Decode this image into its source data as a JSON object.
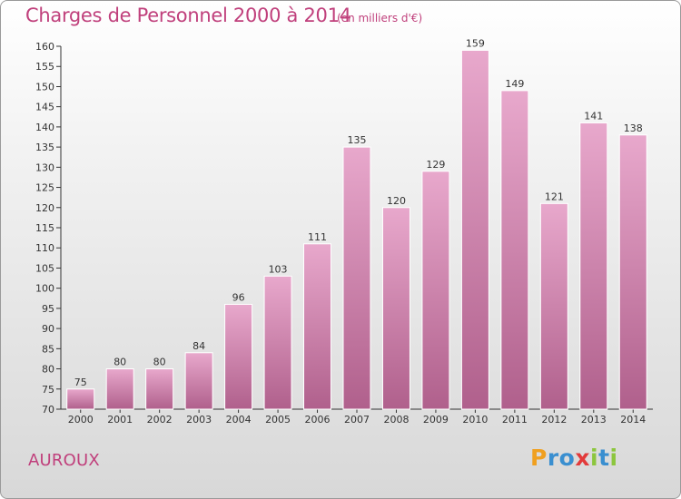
{
  "title": "Charges de Personnel 2000 à 2014",
  "subtitle": "(en milliers d'€)",
  "commune": "AUROUX",
  "logo": {
    "letters": [
      "P",
      "r",
      "o",
      "x",
      "i",
      "t",
      "i"
    ],
    "colors": [
      "#f0a020",
      "#3a8fd0",
      "#3a8fd0",
      "#e23a3a",
      "#8cc63e",
      "#3a8fd0",
      "#8cc63e"
    ]
  },
  "colors": {
    "accent": "#c0407c",
    "bar_top": "#e8a8cc",
    "bar_bottom": "#b0608c"
  },
  "chart_data": {
    "type": "bar",
    "categories": [
      "2000",
      "2001",
      "2002",
      "2003",
      "2004",
      "2005",
      "2006",
      "2007",
      "2008",
      "2009",
      "2010",
      "2011",
      "2012",
      "2013",
      "2014"
    ],
    "values": [
      75,
      80,
      80,
      84,
      96,
      103,
      111,
      135,
      120,
      129,
      159,
      149,
      121,
      141,
      138
    ],
    "ylim": [
      70,
      160
    ],
    "yticks": [
      70,
      75,
      80,
      85,
      90,
      95,
      100,
      105,
      110,
      115,
      120,
      125,
      130,
      135,
      140,
      145,
      150,
      155,
      160
    ],
    "grid": false,
    "xlabel": "",
    "ylabel": ""
  }
}
